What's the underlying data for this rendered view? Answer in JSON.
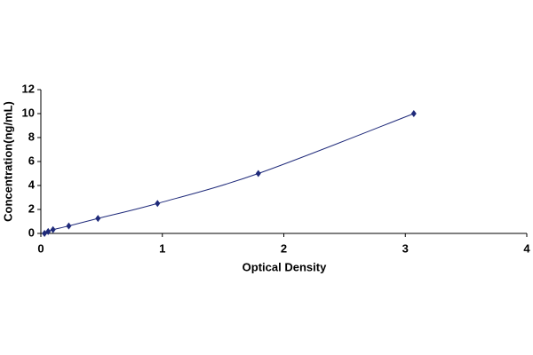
{
  "chart_data": {
    "type": "scatter",
    "x_label": "Optical Density",
    "y_label": "Concentration(ng/mL)",
    "x": [
      0.03,
      0.06,
      0.1,
      0.23,
      0.47,
      0.96,
      1.79,
      3.07
    ],
    "series": [
      {
        "color": "#1f2a7a",
        "values": [
          0,
          0.156,
          0.312,
          0.625,
          1.25,
          2.5,
          5,
          10
        ]
      }
    ],
    "line": true,
    "xlim": [
      0,
      4
    ],
    "xticks": [
      0,
      1,
      2,
      3,
      4
    ],
    "ylim": [
      0,
      12
    ],
    "yticks": [
      0,
      2,
      4,
      6,
      8,
      10,
      12
    ],
    "grid": false
  }
}
